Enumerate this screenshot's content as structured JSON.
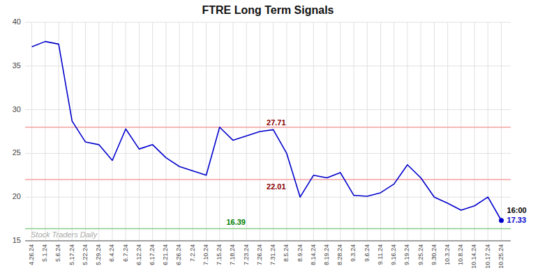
{
  "chart_data": {
    "type": "line",
    "title": "FTRE Long Term Signals",
    "categories": [
      "4.26.24",
      "5.1.24",
      "5.6.24",
      "5.17.24",
      "5.22.24",
      "5.29.24",
      "6.4.24",
      "6.7.24",
      "6.12.24",
      "6.17.24",
      "6.21.24",
      "6.26.24",
      "7.2.24",
      "7.10.24",
      "7.15.24",
      "7.18.24",
      "7.23.24",
      "7.26.24",
      "7.31.24",
      "8.5.24",
      "8.9.24",
      "8.14.24",
      "8.19.24",
      "8.28.24",
      "9.3.24",
      "9.6.24",
      "9.11.24",
      "9.16.24",
      "9.19.24",
      "9.25.24",
      "9.30.24",
      "10.3.24",
      "10.8.24",
      "10.14.24",
      "10.17.24",
      "10.25.24"
    ],
    "values": [
      37.2,
      37.8,
      37.5,
      28.7,
      26.3,
      26.0,
      24.2,
      27.8,
      25.5,
      26.0,
      24.5,
      23.5,
      23.0,
      22.5,
      28.0,
      26.5,
      27.0,
      27.5,
      27.71,
      25.0,
      20.0,
      22.5,
      22.2,
      22.8,
      20.2,
      20.1,
      20.5,
      21.5,
      23.7,
      22.2,
      20.0,
      19.3,
      18.5,
      19.0,
      20.0,
      17.33
    ],
    "color": "#0000cc",
    "ylim": [
      15,
      40
    ],
    "yticks": [
      15,
      20,
      25,
      30,
      35,
      40
    ],
    "grid": true,
    "hlines": [
      {
        "value": 28.0,
        "color": "#f4a0a0"
      },
      {
        "value": 22.0,
        "color": "#f4a0a0"
      },
      {
        "value": 16.39,
        "color": "#88cc88"
      }
    ],
    "annotations": [
      {
        "text": "27.71",
        "value": 27.71,
        "category": "7.31.24",
        "color": "darkred"
      },
      {
        "text": "22.01",
        "value": 22.01,
        "category": "7.31.24",
        "color": "darkred"
      },
      {
        "text": "16.39",
        "value": 16.39,
        "category": "7.18.24",
        "color": "green"
      },
      {
        "text": "16:00",
        "category": "10.25.24",
        "color": "black"
      },
      {
        "text": "17.33",
        "value": 17.33,
        "category": "10.25.24",
        "color": "#0000cc"
      },
      {
        "text": "Stock Traders Daily",
        "color": "#aaaaaa"
      }
    ]
  }
}
